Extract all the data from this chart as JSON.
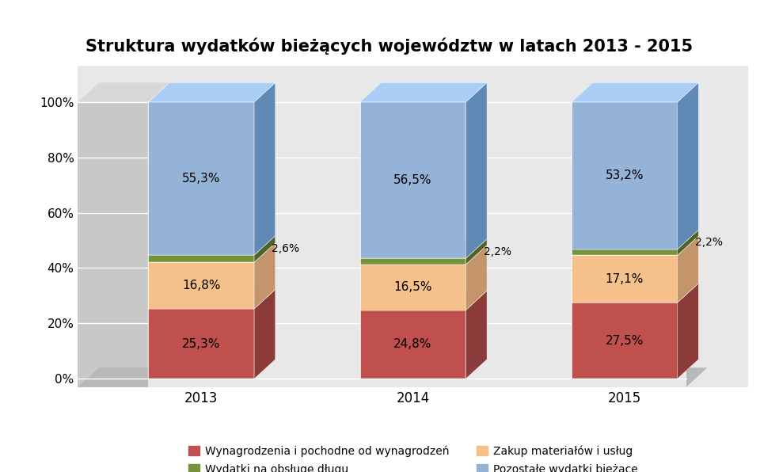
{
  "title": "Struktura wydatków bieżących województw w latach 2013 - 2015",
  "categories": [
    "2013",
    "2014",
    "2015"
  ],
  "series": [
    {
      "name": "Wynagrodzenia i pochodne od wynagrodzeń",
      "values": [
        25.3,
        24.8,
        27.5
      ],
      "color": "#c0504d",
      "dark_color": "#8b3b3a"
    },
    {
      "name": "Zakup materiałów i usług",
      "values": [
        16.8,
        16.5,
        17.1
      ],
      "color": "#f5c08a",
      "dark_color": "#c4956a"
    },
    {
      "name": "Wydatki na obsługę długu",
      "values": [
        2.6,
        2.2,
        2.2
      ],
      "color": "#76923c",
      "dark_color": "#4f6228"
    },
    {
      "name": "Pozostałe wydatki bieżące",
      "values": [
        55.3,
        56.5,
        53.2
      ],
      "color": "#95b3d7",
      "dark_color": "#5f8ab5"
    }
  ],
  "ylabel_ticks": [
    "0%",
    "20%",
    "40%",
    "60%",
    "80%",
    "100%"
  ],
  "ylabel_vals": [
    0,
    20,
    40,
    60,
    80,
    100
  ],
  "background_color": "#ffffff",
  "plot_bg_color": "#e8e8e8",
  "wall_color": "#c8c8c8",
  "floor_color": "#b8b8b8",
  "title_fontsize": 15,
  "label_fontsize": 11,
  "tick_fontsize": 11,
  "legend_fontsize": 10
}
